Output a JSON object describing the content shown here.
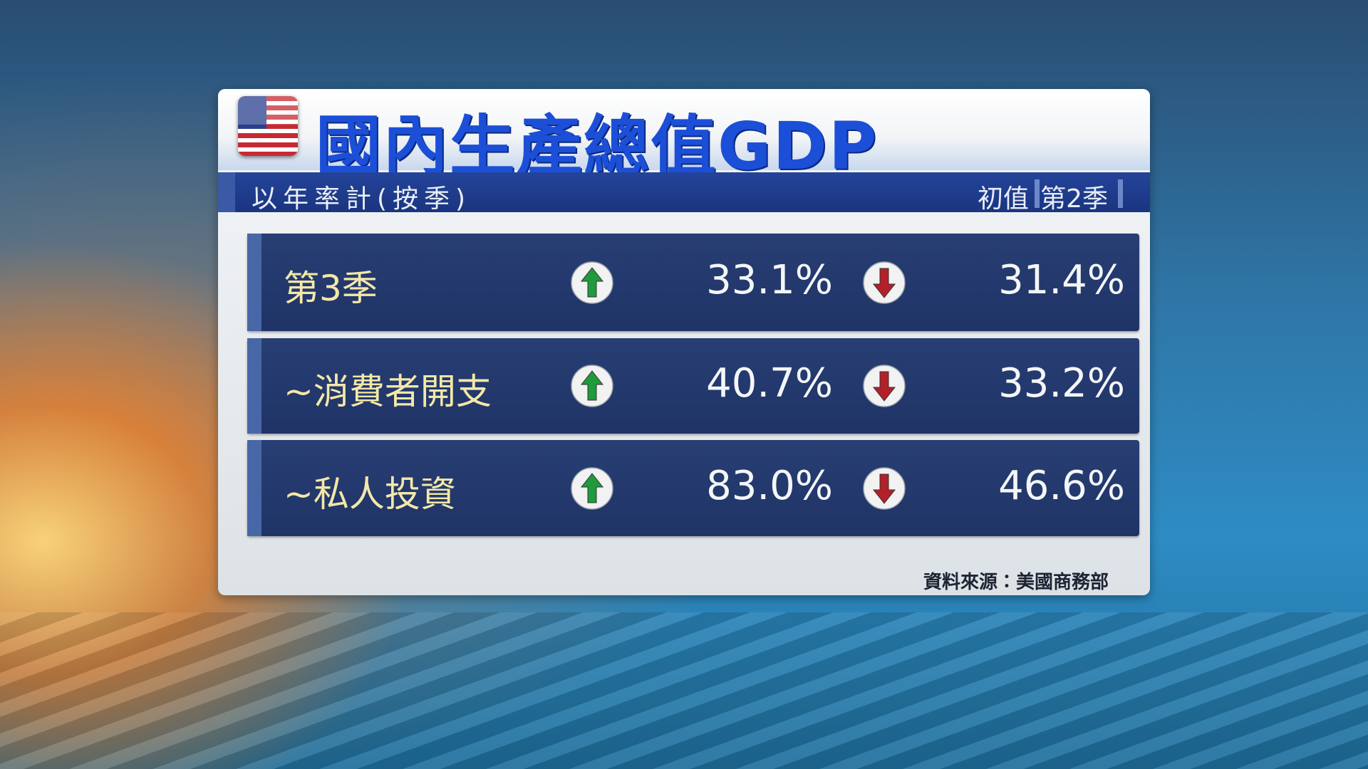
{
  "header": {
    "title": "國內生產總值GDP",
    "subtitle": "以年率計(按季)",
    "columns": [
      "初值",
      "第2季"
    ]
  },
  "table": {
    "rows": [
      [
        "第3季",
        "33.1%",
        "31.4%"
      ],
      [
        "~消費者開支",
        "40.7%",
        "33.2%"
      ],
      [
        "~私人投資",
        "83.0%",
        "46.6%"
      ]
    ]
  },
  "footer": {
    "source": "資料來源：美國商務部"
  }
}
